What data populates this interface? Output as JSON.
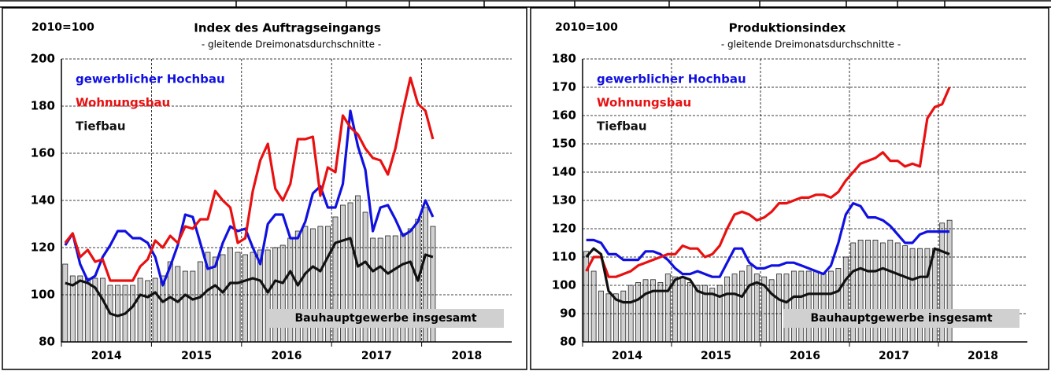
{
  "chart_data": [
    {
      "type": "combo",
      "index_base": "2010=100",
      "title": "Index des Auftragseingangs",
      "subtitle": "- gleitende Dreimonatsdurchschnitte -",
      "categories": [
        "2014",
        null,
        null,
        null,
        null,
        null,
        null,
        null,
        null,
        null,
        null,
        null,
        "2015",
        null,
        null,
        null,
        null,
        null,
        null,
        null,
        null,
        null,
        null,
        null,
        "2016",
        null,
        null,
        null,
        null,
        null,
        null,
        null,
        null,
        null,
        null,
        null,
        "2017",
        null,
        null,
        null,
        null,
        null,
        null,
        null,
        null,
        null,
        null,
        null,
        "2018",
        null,
        null,
        null,
        null,
        null,
        null,
        null,
        null,
        null,
        null,
        null
      ],
      "ylim": [
        80,
        200
      ],
      "yticks": [
        80,
        100,
        120,
        140,
        160,
        180,
        200
      ],
      "grid": true,
      "series": [
        {
          "name": "Bauhauptgewerbe insgesamt",
          "kind": "bar",
          "color": "#d0d0d0",
          "values": [
            113,
            108,
            108,
            107,
            107,
            107,
            104,
            104,
            104,
            104,
            107,
            106,
            107,
            108,
            114,
            112,
            110,
            110,
            114,
            118,
            116,
            117,
            120,
            118,
            117,
            118,
            119,
            119,
            120,
            121,
            124,
            127,
            129,
            128,
            129,
            129,
            133,
            138,
            139,
            142,
            135,
            124,
            124,
            125,
            125,
            126,
            128,
            132,
            137,
            129,
            null,
            null,
            null,
            null,
            null,
            null,
            null,
            null,
            null,
            null
          ]
        },
        {
          "name": "gewerblicher Hochbau",
          "kind": "line",
          "color": "#1010e0",
          "values": [
            121,
            126,
            113,
            106,
            108,
            116,
            121,
            127,
            127,
            124,
            124,
            122,
            116,
            104,
            112,
            121,
            134,
            133,
            122,
            111,
            112,
            122,
            129,
            127,
            128,
            120,
            113,
            130,
            134,
            134,
            124,
            124,
            131,
            143,
            146,
            137,
            137,
            147,
            178,
            163,
            153,
            127,
            137,
            138,
            132,
            125,
            127,
            131,
            140,
            133,
            null,
            null,
            null,
            null,
            null,
            null,
            null,
            null,
            null,
            null
          ]
        },
        {
          "name": "Wohnungsbau",
          "kind": "line",
          "color": "#e81010",
          "values": [
            122,
            126,
            116,
            119,
            114,
            115,
            106,
            106,
            106,
            106,
            112,
            115,
            123,
            120,
            125,
            122,
            129,
            128,
            132,
            132,
            144,
            140,
            137,
            122,
            124,
            144,
            157,
            164,
            145,
            140,
            147,
            166,
            166,
            167,
            142,
            154,
            152,
            176,
            171,
            168,
            162,
            158,
            157,
            151,
            162,
            178,
            192,
            181,
            178,
            166,
            null,
            null,
            null,
            null,
            null,
            null,
            null,
            null,
            null,
            null
          ]
        },
        {
          "name": "Tiefbau",
          "kind": "line",
          "color": "#111111",
          "values": [
            105,
            104,
            106,
            105,
            103,
            98,
            92,
            91,
            92,
            95,
            100,
            99,
            101,
            97,
            99,
            97,
            100,
            98,
            99,
            102,
            104,
            101,
            105,
            105,
            106,
            107,
            106,
            101,
            106,
            105,
            110,
            104,
            109,
            112,
            110,
            116,
            122,
            123,
            124,
            112,
            114,
            110,
            112,
            109,
            111,
            113,
            114,
            106,
            117,
            116,
            null,
            null,
            null,
            null,
            null,
            null,
            null,
            null,
            null,
            null
          ]
        }
      ]
    },
    {
      "type": "combo",
      "index_base": "2010=100",
      "title": "Produktionsindex",
      "subtitle": "- gleitende Dreimonatsdurchschnitte -",
      "categories": [
        "2014",
        null,
        null,
        null,
        null,
        null,
        null,
        null,
        null,
        null,
        null,
        null,
        "2015",
        null,
        null,
        null,
        null,
        null,
        null,
        null,
        null,
        null,
        null,
        null,
        "2016",
        null,
        null,
        null,
        null,
        null,
        null,
        null,
        null,
        null,
        null,
        null,
        "2017",
        null,
        null,
        null,
        null,
        null,
        null,
        null,
        null,
        null,
        null,
        null,
        "2018",
        null,
        null,
        null,
        null,
        null,
        null,
        null,
        null,
        null,
        null,
        null
      ],
      "ylim": [
        80,
        180
      ],
      "yticks": [
        80,
        90,
        100,
        110,
        120,
        130,
        140,
        150,
        160,
        170,
        180
      ],
      "grid": true,
      "series": [
        {
          "name": "Bauhauptgewerbe insgesamt",
          "kind": "bar",
          "color": "#d0d0d0",
          "values": [
            112,
            105,
            98,
            97,
            97,
            98,
            100,
            101,
            102,
            102,
            101,
            104,
            103,
            103,
            101,
            100,
            100,
            99,
            100,
            103,
            104,
            105,
            107,
            104,
            103,
            102,
            104,
            104,
            105,
            105,
            105,
            105,
            104,
            105,
            106,
            110,
            115,
            116,
            116,
            116,
            115,
            116,
            115,
            114,
            113,
            113,
            113,
            113,
            122,
            123,
            null,
            null,
            null,
            null,
            null,
            null,
            null,
            null,
            null,
            null
          ]
        },
        {
          "name": "gewerblicher Hochbau",
          "kind": "line",
          "color": "#1010e0",
          "values": [
            116,
            116,
            115,
            111,
            111,
            109,
            109,
            109,
            112,
            112,
            111,
            109,
            106,
            104,
            104,
            105,
            104,
            103,
            103,
            108,
            113,
            113,
            108,
            106,
            106,
            107,
            107,
            108,
            108,
            107,
            106,
            105,
            104,
            107,
            115,
            125,
            129,
            128,
            124,
            124,
            123,
            121,
            118,
            115,
            115,
            118,
            119,
            119,
            119,
            119,
            null,
            null,
            null,
            null,
            null,
            null,
            null,
            null,
            null,
            null
          ]
        },
        {
          "name": "Wohnungsbau",
          "kind": "line",
          "color": "#e81010",
          "values": [
            105,
            110,
            110,
            103,
            103,
            104,
            105,
            107,
            108,
            109,
            110,
            111,
            111,
            114,
            113,
            113,
            110,
            111,
            114,
            120,
            125,
            126,
            125,
            123,
            124,
            126,
            129,
            129,
            130,
            131,
            131,
            132,
            132,
            131,
            133,
            137,
            140,
            143,
            144,
            145,
            147,
            144,
            144,
            142,
            143,
            142,
            159,
            163,
            164,
            170,
            null,
            null,
            null,
            null,
            null,
            null,
            null,
            null,
            null,
            null
          ]
        },
        {
          "name": "Tiefbau",
          "kind": "line",
          "color": "#111111",
          "values": [
            110,
            113,
            111,
            98,
            95,
            94,
            94,
            95,
            97,
            98,
            98,
            98,
            102,
            103,
            102,
            98,
            97,
            97,
            96,
            97,
            97,
            96,
            100,
            101,
            100,
            97,
            95,
            94,
            96,
            96,
            97,
            97,
            97,
            97,
            98,
            102,
            105,
            106,
            105,
            105,
            106,
            105,
            104,
            103,
            102,
            103,
            103,
            113,
            112,
            111,
            null,
            null,
            null,
            null,
            null,
            null,
            null,
            null,
            null,
            null
          ]
        }
      ]
    }
  ]
}
